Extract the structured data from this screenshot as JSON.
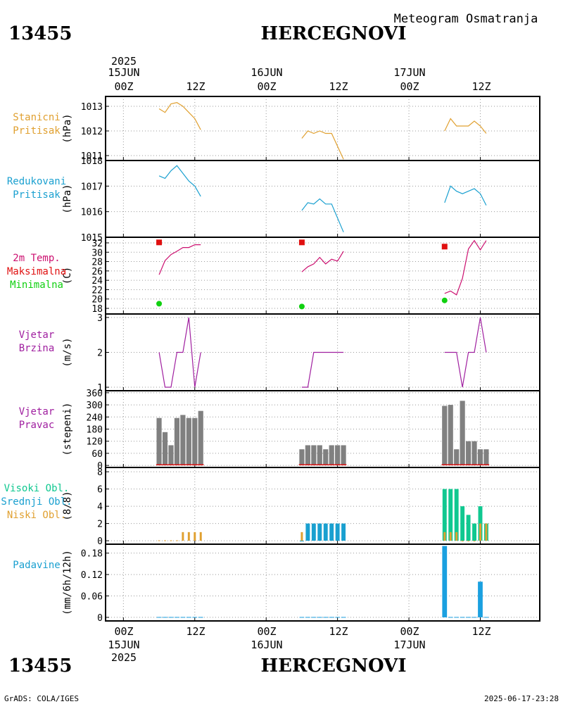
{
  "header": {
    "station_id": "13455",
    "station_name": "HERCEGNOVI",
    "subtitle": "Meteogram Osmatranja"
  },
  "footer": {
    "left": "GrADS: COLA/IGES",
    "right": "2025-06-17-23:28"
  },
  "time_axis": {
    "year": "2025",
    "dates": [
      "15JUN",
      "16JUN",
      "17JUN"
    ],
    "hours": [
      "00Z",
      "12Z",
      "00Z",
      "12Z",
      "00Z",
      "12Z"
    ],
    "tick_hours": [
      0,
      12,
      24,
      36,
      48,
      60
    ],
    "range_hours": [
      -3,
      70
    ]
  },
  "colors": {
    "pressure": "#e0a030",
    "reduced": "#1aa0d0",
    "temp": "#cc1070",
    "tmax": "#e01010",
    "tmin": "#10d010",
    "wind": "#a020a0",
    "bars": "#808080",
    "highcloud": "#10c890",
    "midcloud": "#1aa0d0",
    "lowcloud": "#e0a030",
    "precip": "#1aa0e0",
    "grid": "#999999"
  },
  "chart_data": [
    {
      "id": "station_pressure",
      "type": "line",
      "labels": [
        "Stanicni",
        "Pritisak"
      ],
      "label_colors": [
        "#e0a030",
        "#e0a030"
      ],
      "ylabel": "(hPa)",
      "ylim": [
        1010.8,
        1013.4
      ],
      "yticks": [
        1011,
        1012,
        1013
      ],
      "ytick_labels": [
        "1011",
        "1012",
        "1013"
      ],
      "series": [
        {
          "color": "#e0a030",
          "segments": [
            [
              [
                6,
                1012.9
              ],
              [
                7,
                1012.75
              ],
              [
                8,
                1013.1
              ],
              [
                9,
                1013.15
              ],
              [
                10,
                1013.0
              ],
              [
                11,
                1012.75
              ],
              [
                12,
                1012.5
              ],
              [
                13,
                1012.05
              ]
            ],
            [
              [
                30,
                1011.7
              ],
              [
                31,
                1012.0
              ],
              [
                32,
                1011.9
              ],
              [
                33,
                1012.0
              ],
              [
                34,
                1011.9
              ],
              [
                35,
                1011.9
              ],
              [
                37,
                1010.85
              ]
            ],
            [
              [
                54,
                1012.0
              ],
              [
                55,
                1012.5
              ],
              [
                56,
                1012.2
              ],
              [
                57,
                1012.2
              ],
              [
                58,
                1012.2
              ],
              [
                59,
                1012.4
              ],
              [
                60,
                1012.2
              ],
              [
                61,
                1011.9
              ]
            ]
          ]
        }
      ]
    },
    {
      "id": "reduced_pressure",
      "type": "line",
      "labels": [
        "Redukovani",
        "Pritisak"
      ],
      "label_colors": [
        "#1aa0d0",
        "#1aa0d0"
      ],
      "ylabel": "(hPa)",
      "ylim": [
        1015.0,
        1018.0
      ],
      "yticks": [
        1015,
        1016,
        1017,
        1018
      ],
      "ytick_labels": [
        "1015",
        "1016",
        "1017",
        "1018"
      ],
      "series": [
        {
          "color": "#1aa0d0",
          "segments": [
            [
              [
                6,
                1017.4
              ],
              [
                7,
                1017.3
              ],
              [
                8,
                1017.6
              ],
              [
                9,
                1017.8
              ],
              [
                10,
                1017.5
              ],
              [
                11,
                1017.2
              ],
              [
                12,
                1017.0
              ],
              [
                13,
                1016.6
              ]
            ],
            [
              [
                30,
                1016.05
              ],
              [
                31,
                1016.35
              ],
              [
                32,
                1016.3
              ],
              [
                33,
                1016.5
              ],
              [
                34,
                1016.3
              ],
              [
                35,
                1016.3
              ],
              [
                37,
                1015.2
              ]
            ],
            [
              [
                54,
                1016.35
              ],
              [
                55,
                1017.0
              ],
              [
                56,
                1016.8
              ],
              [
                57,
                1016.7
              ],
              [
                58,
                1016.8
              ],
              [
                59,
                1016.9
              ],
              [
                60,
                1016.7
              ],
              [
                61,
                1016.25
              ]
            ]
          ]
        }
      ]
    },
    {
      "id": "temperature",
      "type": "line",
      "labels": [
        "2m Temp.",
        "Maksimalna",
        "Minimalna"
      ],
      "label_colors": [
        "#cc1070",
        "#e01010",
        "#10d010"
      ],
      "ylabel": "(C)",
      "ylim": [
        16.8,
        33.2
      ],
      "yticks": [
        18,
        20,
        22,
        24,
        26,
        28,
        30,
        32
      ],
      "ytick_labels": [
        "18",
        "20",
        "22",
        "24",
        "26",
        "28",
        "30",
        "32"
      ],
      "series": [
        {
          "color": "#cc1070",
          "segments": [
            [
              [
                6,
                25.2
              ],
              [
                7,
                28.2
              ],
              [
                8,
                29.5
              ],
              [
                9,
                30.2
              ],
              [
                10,
                31.0
              ],
              [
                11,
                31.0
              ],
              [
                12,
                31.6
              ],
              [
                13,
                31.6
              ]
            ],
            [
              [
                30,
                25.8
              ],
              [
                31,
                26.9
              ],
              [
                32,
                27.5
              ],
              [
                33,
                28.9
              ],
              [
                34,
                27.5
              ],
              [
                35,
                28.5
              ],
              [
                36,
                28.1
              ],
              [
                37,
                30.2
              ]
            ],
            [
              [
                54,
                21.2
              ],
              [
                55,
                21.7
              ],
              [
                56,
                20.9
              ],
              [
                57,
                24.4
              ],
              [
                58,
                30.7
              ],
              [
                59,
                32.5
              ],
              [
                60,
                30.5
              ],
              [
                61,
                32.5
              ]
            ]
          ]
        },
        {
          "color": "#e01010",
          "marker": "square",
          "points": [
            [
              6,
              32.1
            ],
            [
              30,
              32.1
            ],
            [
              54,
              31.2
            ]
          ]
        },
        {
          "color": "#10d010",
          "marker": "circle",
          "points": [
            [
              6,
              19.0
            ],
            [
              30,
              18.4
            ],
            [
              54,
              19.7
            ]
          ]
        }
      ]
    },
    {
      "id": "wind_speed",
      "type": "line",
      "labels": [
        "Vjetar",
        "Brzina"
      ],
      "label_colors": [
        "#a020a0",
        "#a020a0"
      ],
      "ylabel": "(m/s)",
      "ylim": [
        0.9,
        3.1
      ],
      "yticks": [
        1,
        2,
        3
      ],
      "ytick_labels": [
        "1",
        "2",
        "3"
      ],
      "series": [
        {
          "color": "#a020a0",
          "segments": [
            [
              [
                6,
                2
              ],
              [
                7,
                1
              ],
              [
                8,
                1
              ],
              [
                9,
                2
              ],
              [
                10,
                2
              ],
              [
                11,
                3
              ],
              [
                12,
                1
              ],
              [
                13,
                2
              ]
            ],
            [
              [
                30,
                1
              ],
              [
                31,
                1
              ],
              [
                32,
                2
              ],
              [
                33,
                2
              ],
              [
                34,
                2
              ],
              [
                35,
                2
              ],
              [
                36,
                2
              ],
              [
                37,
                2
              ]
            ],
            [
              [
                54,
                2
              ],
              [
                55,
                2
              ],
              [
                56,
                2
              ],
              [
                57,
                1
              ],
              [
                58,
                2
              ],
              [
                59,
                2
              ],
              [
                60,
                3
              ],
              [
                61,
                2
              ]
            ]
          ]
        }
      ]
    },
    {
      "id": "wind_direction",
      "type": "bar",
      "labels": [
        "Vjetar",
        "Pravac"
      ],
      "label_colors": [
        "#a020a0",
        "#a020a0"
      ],
      "ylabel": "(stepeni)",
      "ylim": [
        -10,
        370
      ],
      "yticks": [
        0,
        60,
        120,
        180,
        240,
        300,
        360
      ],
      "ytick_labels": [
        "0",
        "60",
        "120",
        "180",
        "240",
        "300",
        "360"
      ],
      "series": [
        {
          "color": "#808080",
          "bar_width": 0.85,
          "x": [
            6,
            7,
            8,
            9,
            10,
            11,
            12,
            13,
            30,
            31,
            32,
            33,
            34,
            35,
            36,
            37,
            54,
            55,
            56,
            57,
            58,
            59,
            60,
            61
          ],
          "values": [
            235,
            165,
            100,
            235,
            250,
            235,
            235,
            270,
            80,
            100,
            100,
            100,
            80,
            100,
            100,
            100,
            295,
            300,
            80,
            320,
            120,
            120,
            80,
            80
          ]
        }
      ],
      "baseline_color": "#e01010"
    },
    {
      "id": "clouds",
      "type": "bar",
      "labels": [
        "Visoki Obl.",
        "Srednji Obl.",
        "Niski Obl."
      ],
      "label_colors": [
        "#10c890",
        "#1aa0d0",
        "#e0a030"
      ],
      "ylabel": "(8/8)",
      "ylim": [
        -0.4,
        8.5
      ],
      "yticks": [
        0,
        2,
        4,
        6,
        8
      ],
      "ytick_labels": [
        "0",
        "2",
        "4",
        "6",
        "8"
      ],
      "series": [
        {
          "name": "Visoki",
          "color": "#10c890",
          "bar_width": 0.7,
          "x": [
            54,
            55,
            56,
            57,
            58,
            59,
            60,
            61
          ],
          "values": [
            6,
            6,
            6,
            4,
            3,
            2,
            4,
            2
          ]
        },
        {
          "name": "Srednji",
          "color": "#1aa0d0",
          "bar_width": 0.7,
          "x": [
            30,
            31,
            32,
            33,
            34,
            35,
            36,
            37
          ],
          "values": [
            0,
            2,
            2,
            2,
            2,
            2,
            2,
            2
          ]
        },
        {
          "name": "Niski",
          "color": "#e0a030",
          "bar_width": 0.35,
          "x": [
            6,
            7,
            8,
            9,
            10,
            11,
            12,
            13,
            30,
            54,
            55,
            56,
            57,
            58,
            59,
            60,
            61
          ],
          "values": [
            0.05,
            0.05,
            0.05,
            0.05,
            1,
            1,
            1,
            1,
            1,
            1,
            1,
            1,
            0,
            0,
            0,
            2,
            2
          ]
        }
      ]
    },
    {
      "id": "precipitation",
      "type": "bar",
      "labels": [
        "Padavine"
      ],
      "label_colors": [
        "#1aa0d0"
      ],
      "ylabel": "(mm/6h/12h)",
      "ylim": [
        -0.01,
        0.205
      ],
      "yticks": [
        0,
        0.06,
        0.12,
        0.18
      ],
      "ytick_labels": [
        "0",
        "0.06",
        "0.12",
        "0.18"
      ],
      "series": [
        {
          "color": "#1aa0e0",
          "bar_width": 0.8,
          "x": [
            6,
            7,
            8,
            9,
            10,
            11,
            12,
            13,
            30,
            31,
            32,
            33,
            34,
            35,
            36,
            37,
            54,
            55,
            56,
            57,
            58,
            59,
            60,
            61
          ],
          "values": [
            0.001,
            0.001,
            0.001,
            0.001,
            0.001,
            0.001,
            0.001,
            0.001,
            0.001,
            0.001,
            0.001,
            0.001,
            0.001,
            0.001,
            0.001,
            0.001,
            0.2,
            0.001,
            0.001,
            0.001,
            0.001,
            0.001,
            0.1,
            0.001
          ]
        }
      ]
    }
  ]
}
